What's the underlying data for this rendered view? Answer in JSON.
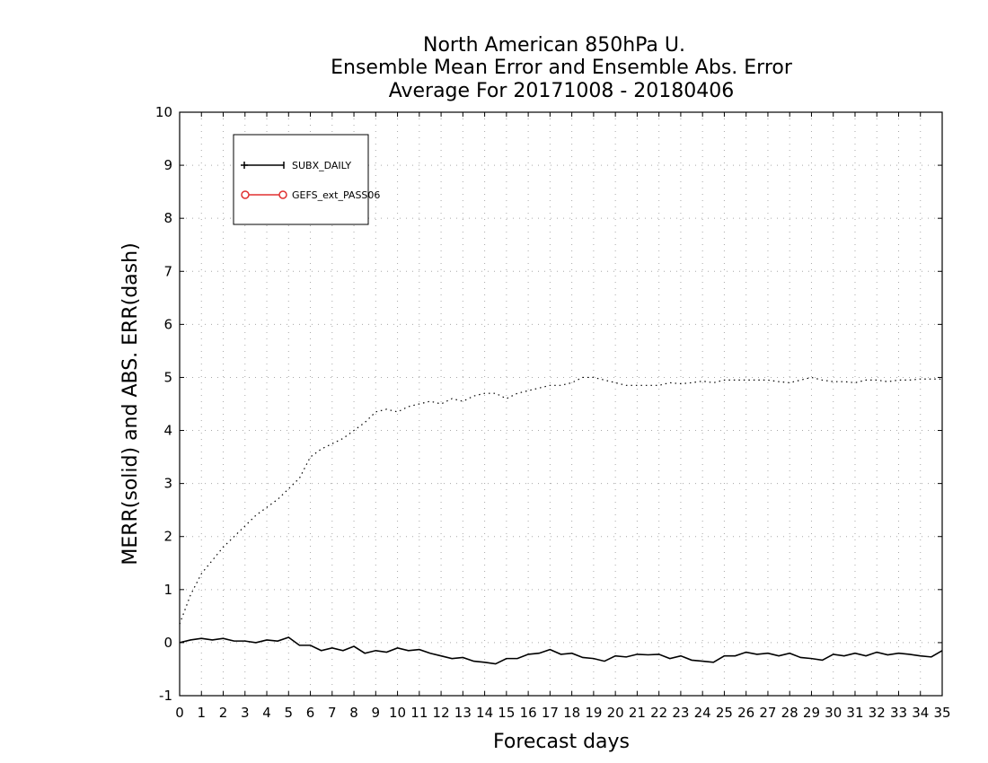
{
  "chart_data": {
    "type": "line",
    "title": [
      "North American 850hPa U.",
      "Ensemble Mean Error and Ensemble Abs. Error",
      "Average For 20171008 - 20180406"
    ],
    "xlabel": "Forecast days",
    "ylabel": "MERR(solid) and ABS. ERR(dash)",
    "xlim": [
      0,
      35
    ],
    "ylim": [
      -1,
      10
    ],
    "x_ticks": [
      0,
      1,
      2,
      3,
      4,
      5,
      6,
      7,
      8,
      9,
      10,
      11,
      12,
      13,
      14,
      15,
      16,
      17,
      18,
      19,
      20,
      21,
      22,
      23,
      24,
      25,
      26,
      27,
      28,
      29,
      30,
      31,
      32,
      33,
      34,
      35
    ],
    "y_ticks": [
      -1,
      0,
      1,
      2,
      3,
      4,
      5,
      6,
      7,
      8,
      9,
      10
    ],
    "grid": true,
    "legend_position": "top-left",
    "legend": [
      {
        "label": "SUBX_DAILY",
        "color": "#000000",
        "marker": "plus"
      },
      {
        "label": "GEFS_ext_PASS06",
        "color": "#e03030",
        "marker": "circle"
      }
    ],
    "x": [
      0,
      0.5,
      1,
      1.5,
      2,
      2.5,
      3,
      3.5,
      4,
      4.5,
      5,
      5.5,
      6,
      6.5,
      7,
      7.5,
      8,
      8.5,
      9,
      9.5,
      10,
      10.5,
      11,
      11.5,
      12,
      12.5,
      13,
      13.5,
      14,
      14.5,
      15,
      15.5,
      16,
      16.5,
      17,
      17.5,
      18,
      18.5,
      19,
      19.5,
      20,
      20.5,
      21,
      21.5,
      22,
      22.5,
      23,
      23.5,
      24,
      24.5,
      25,
      25.5,
      26,
      26.5,
      27,
      27.5,
      28,
      28.5,
      29,
      29.5,
      30,
      30.5,
      31,
      31.5,
      32,
      32.5,
      33,
      33.5,
      34,
      34.5,
      35
    ],
    "series": [
      {
        "label": "MERR (solid)",
        "style": "solid",
        "color": "#000000",
        "values": [
          0.0,
          0.05,
          0.08,
          0.05,
          0.08,
          0.03,
          0.03,
          0.0,
          0.05,
          0.03,
          0.1,
          -0.05,
          -0.05,
          -0.15,
          -0.1,
          -0.15,
          -0.07,
          -0.2,
          -0.15,
          -0.18,
          -0.1,
          -0.15,
          -0.13,
          -0.2,
          -0.25,
          -0.3,
          -0.28,
          -0.35,
          -0.37,
          -0.4,
          -0.3,
          -0.3,
          -0.22,
          -0.2,
          -0.13,
          -0.22,
          -0.2,
          -0.28,
          -0.3,
          -0.35,
          -0.25,
          -0.27,
          -0.22,
          -0.23,
          -0.22,
          -0.3,
          -0.25,
          -0.33,
          -0.35,
          -0.37,
          -0.25,
          -0.25,
          -0.18,
          -0.22,
          -0.2,
          -0.25,
          -0.2,
          -0.28,
          -0.3,
          -0.33,
          -0.22,
          -0.25,
          -0.2,
          -0.25,
          -0.18,
          -0.23,
          -0.2,
          -0.22,
          -0.25,
          -0.27,
          -0.15
        ]
      },
      {
        "label": "ABS. ERR (dash)",
        "style": "dotted",
        "color": "#000000",
        "values": [
          0.35,
          0.9,
          1.3,
          1.55,
          1.8,
          2.0,
          2.2,
          2.4,
          2.55,
          2.7,
          2.9,
          3.1,
          3.5,
          3.65,
          3.75,
          3.85,
          4.0,
          4.15,
          4.35,
          4.4,
          4.35,
          4.45,
          4.5,
          4.55,
          4.5,
          4.6,
          4.55,
          4.65,
          4.7,
          4.7,
          4.6,
          4.7,
          4.75,
          4.8,
          4.85,
          4.85,
          4.9,
          5.0,
          5.0,
          4.95,
          4.9,
          4.85,
          4.85,
          4.85,
          4.85,
          4.9,
          4.88,
          4.9,
          4.93,
          4.9,
          4.95,
          4.95,
          4.95,
          4.95,
          4.95,
          4.92,
          4.9,
          4.95,
          5.0,
          4.95,
          4.92,
          4.92,
          4.9,
          4.95,
          4.95,
          4.92,
          4.95,
          4.95,
          4.97,
          4.97,
          4.97
        ]
      }
    ]
  }
}
